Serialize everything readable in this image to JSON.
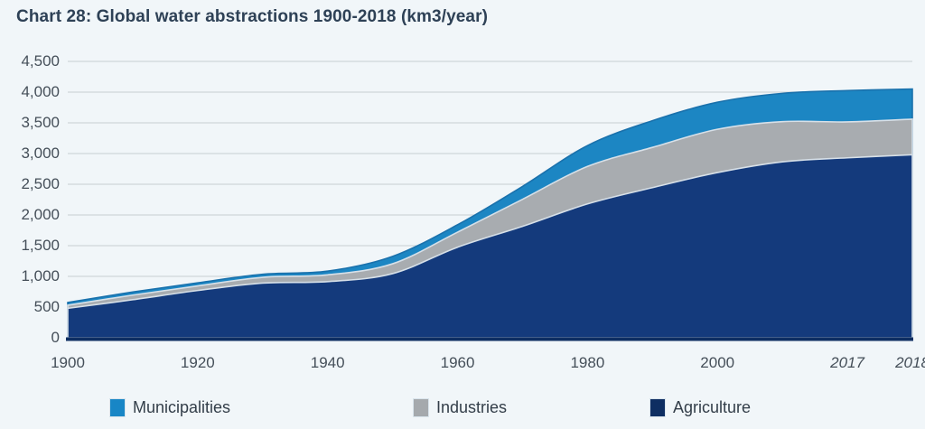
{
  "title": "Chart 28: Global water abstractions 1900-2018 (km3/year)",
  "colors": {
    "background": "#f1f6f9",
    "title_text": "#2e4156",
    "axis_text": "#454f59",
    "gridline": "#d0d5d9",
    "axis_line": "#0e2e62",
    "area_agriculture": "#143a7c",
    "area_industries": "#a8acb0",
    "area_municipalities": "#1c86c3",
    "boundary_light_stroke": "#d7e0e8",
    "municipalities_top_stroke": "#1a71ac"
  },
  "legend": {
    "items": [
      {
        "label": "Municipalities",
        "color": "#1886c6"
      },
      {
        "label": "Industries",
        "color": "#a5a9ad"
      },
      {
        "label": "Agriculture",
        "color": "#0e2e62"
      }
    ]
  },
  "chart_data": {
    "type": "area",
    "stacked": true,
    "title": "Chart 28: Global water abstractions 1900-2018 (km3/year)",
    "unit": "km3/year",
    "x": [
      1900,
      1910,
      1920,
      1930,
      1940,
      1950,
      1960,
      1970,
      1980,
      1990,
      2000,
      2010,
      2017,
      2018
    ],
    "series": [
      {
        "name": "Agriculture",
        "color": "#143a7c",
        "values": [
          480,
          620,
          770,
          890,
          915,
          1045,
          1475,
          1815,
          2180,
          2445,
          2690,
          2865,
          2930,
          2980
        ]
      },
      {
        "name": "Industries",
        "color": "#a8acb0",
        "values": [
          50,
          75,
          75,
          95,
          110,
          160,
          245,
          440,
          610,
          655,
          705,
          655,
          585,
          580
        ]
      },
      {
        "name": "Municipalities",
        "color": "#1c86c3",
        "values": [
          45,
          50,
          50,
          50,
          60,
          120,
          120,
          210,
          340,
          435,
          440,
          460,
          510,
          490
        ]
      }
    ],
    "totals": [
      575,
      745,
      895,
      1035,
      1085,
      1325,
      1840,
      2465,
      3130,
      3535,
      3835,
      3980,
      4025,
      4050
    ],
    "ylim": [
      0,
      4500
    ],
    "y_ticks": [
      0,
      500,
      1000,
      1500,
      2000,
      2500,
      3000,
      3500,
      4000,
      4500
    ],
    "x_tick_labels": [
      {
        "label": "1900",
        "index": 0,
        "italic": false
      },
      {
        "label": "1920",
        "index": 2,
        "italic": false
      },
      {
        "label": "1940",
        "index": 4,
        "italic": false
      },
      {
        "label": "1960",
        "index": 6,
        "italic": false
      },
      {
        "label": "1980",
        "index": 8,
        "italic": false
      },
      {
        "label": "2000",
        "index": 10,
        "italic": false
      },
      {
        "label": "2017",
        "index": 12,
        "italic": true
      },
      {
        "label": "2018",
        "index": 13,
        "italic": true
      }
    ],
    "grid": true,
    "legend_position": "bottom",
    "smooth": true
  }
}
